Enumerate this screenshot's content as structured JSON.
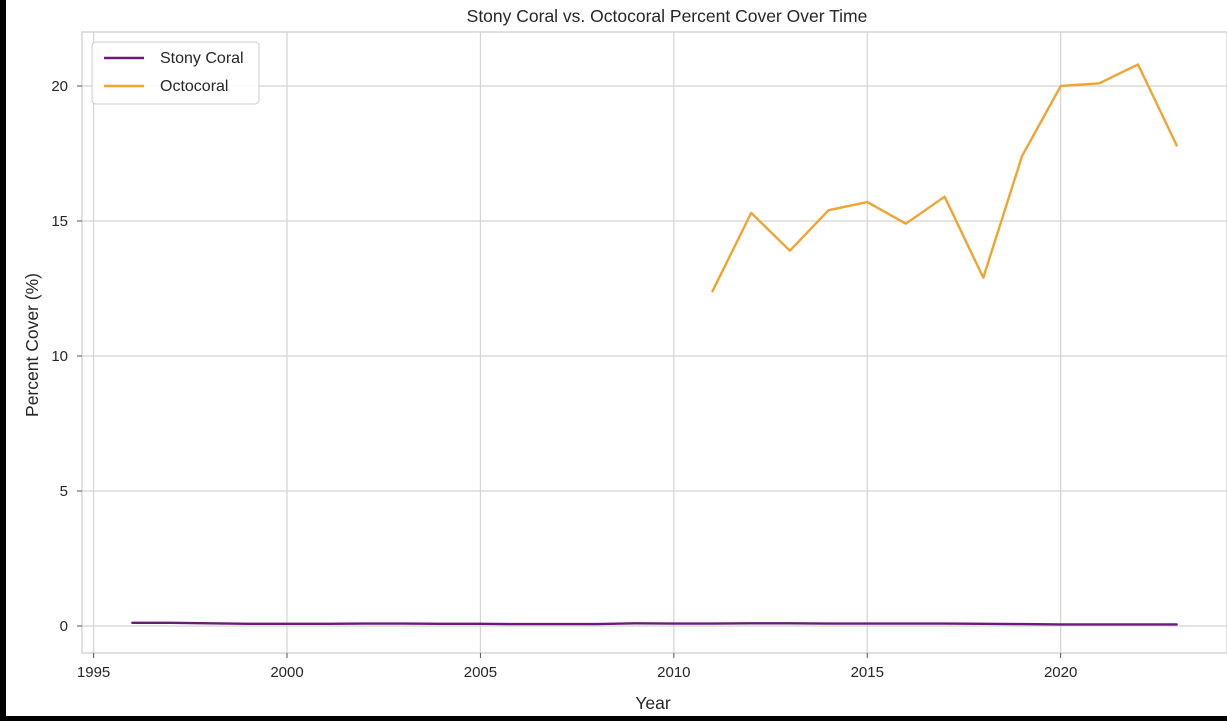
{
  "chart_data": {
    "type": "line",
    "title": "Stony Coral vs. Octocoral Percent Cover Over Time",
    "xlabel": "Year",
    "ylabel": "Percent Cover (%)",
    "xlim": [
      1994.7,
      2024.3
    ],
    "ylim": [
      -1.0,
      22.0
    ],
    "xticks": [
      1995,
      2000,
      2005,
      2010,
      2015,
      2020
    ],
    "yticks": [
      0,
      5,
      10,
      15,
      20
    ],
    "grid": true,
    "legend_position": "top-left",
    "series": [
      {
        "name": "Stony Coral",
        "color": "#6a1b7a",
        "x": [
          1996,
          1997,
          1998,
          1999,
          2000,
          2001,
          2002,
          2003,
          2004,
          2005,
          2006,
          2007,
          2008,
          2009,
          2010,
          2011,
          2012,
          2013,
          2014,
          2015,
          2016,
          2017,
          2018,
          2019,
          2020,
          2021,
          2022,
          2023
        ],
        "y": [
          0.12,
          0.12,
          0.1,
          0.08,
          0.08,
          0.08,
          0.09,
          0.09,
          0.08,
          0.08,
          0.07,
          0.07,
          0.07,
          0.1,
          0.09,
          0.09,
          0.1,
          0.1,
          0.09,
          0.09,
          0.09,
          0.09,
          0.08,
          0.07,
          0.06,
          0.06,
          0.06,
          0.06
        ]
      },
      {
        "name": "Octocoral",
        "color": "#f0a431",
        "x": [
          2011,
          2012,
          2013,
          2014,
          2015,
          2016,
          2017,
          2018,
          2019,
          2020,
          2021,
          2022,
          2023
        ],
        "y": [
          12.4,
          15.3,
          13.9,
          15.4,
          15.7,
          14.9,
          15.9,
          12.9,
          17.4,
          20.0,
          20.1,
          20.8,
          17.8
        ]
      }
    ]
  }
}
